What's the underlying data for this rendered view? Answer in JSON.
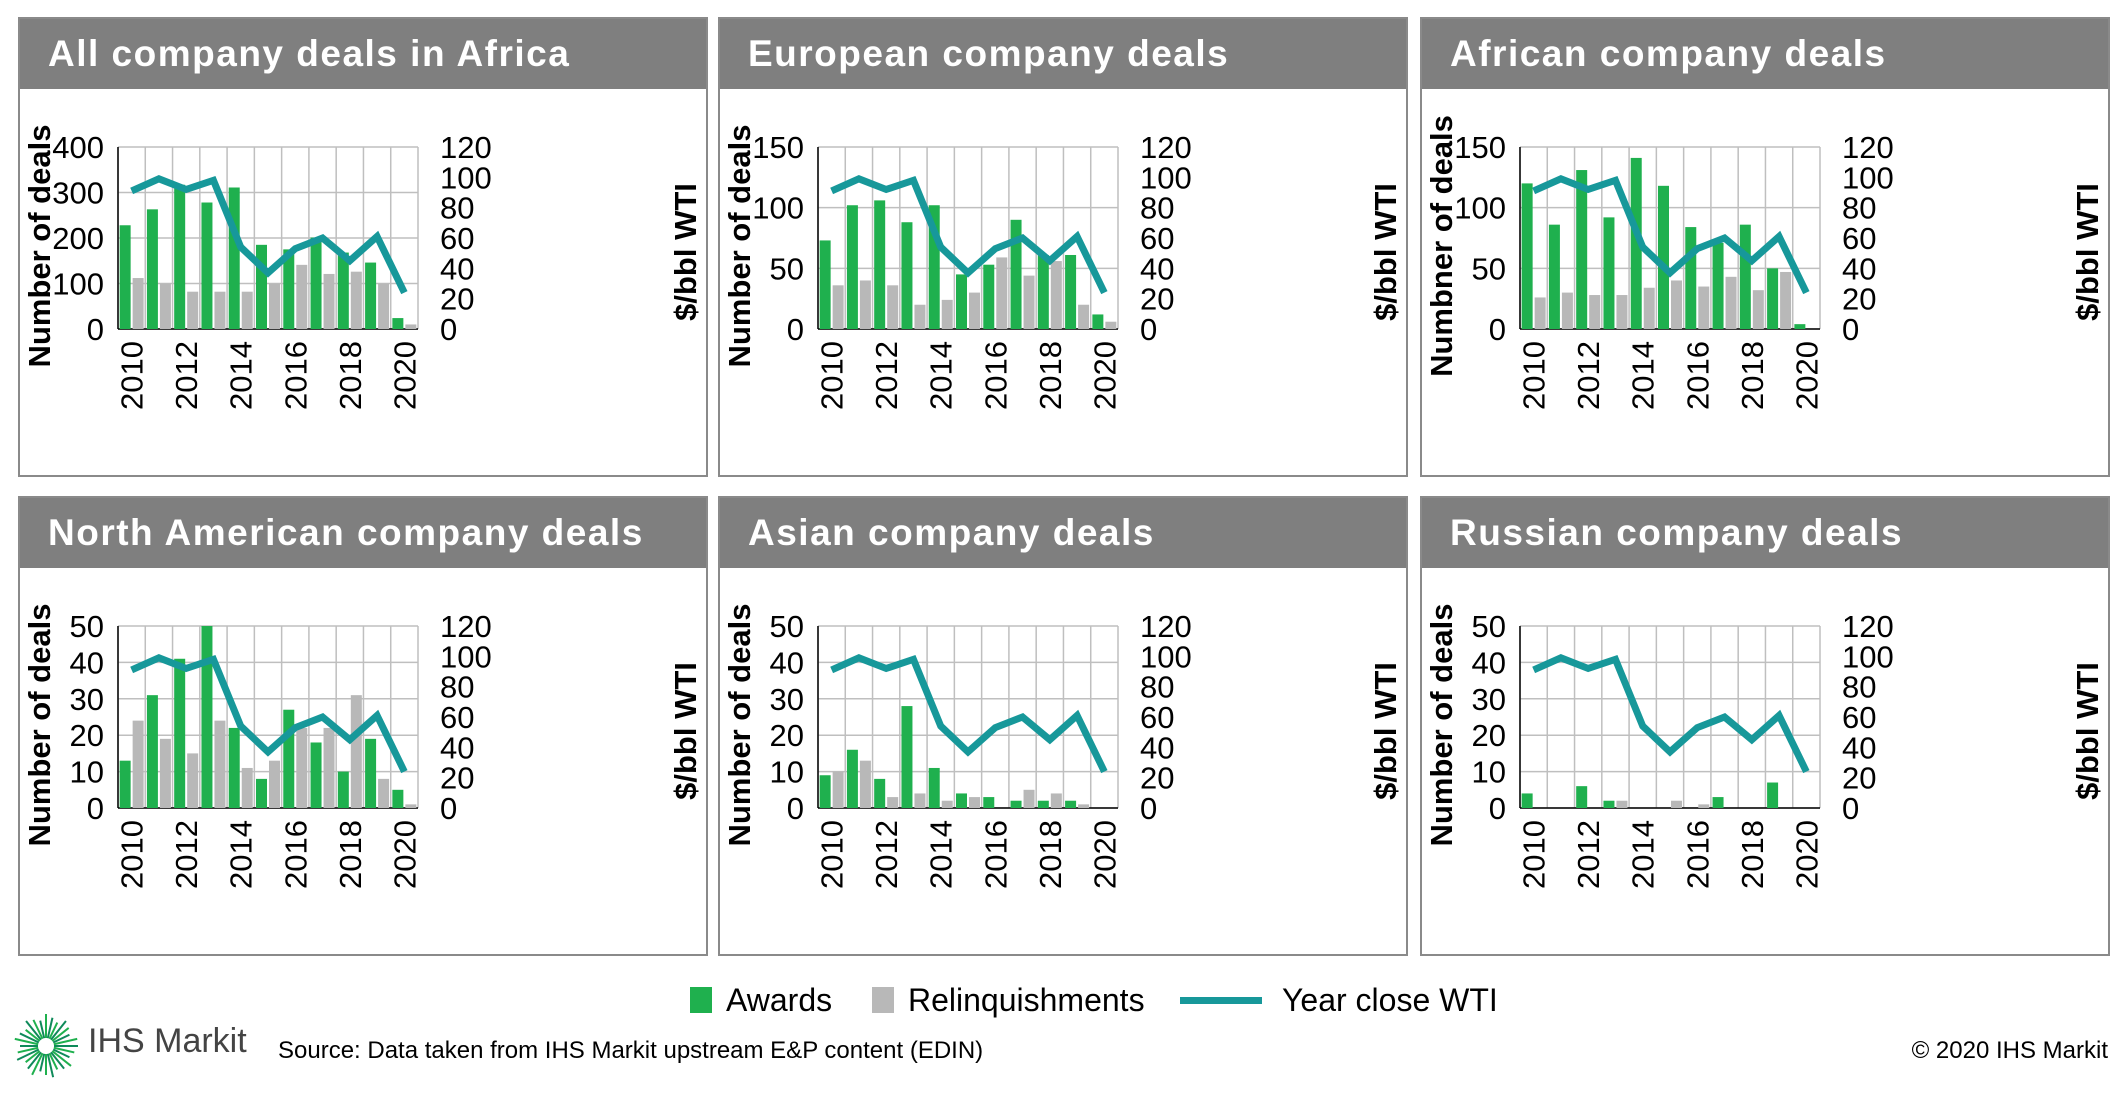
{
  "colors": {
    "awards": "#1fb04e",
    "relinquishments": "#b8b8b8",
    "wti": "#17989a",
    "header": "#7f7f7f",
    "grid": "#bfbfbf"
  },
  "chart_data": [
    {
      "type": "bar",
      "title": "All company deals in Africa",
      "ylabel": "Number of deals",
      "y2label": "$/bbl WTI",
      "ylim": [
        0,
        400
      ],
      "yticks": [
        "400",
        "300",
        "200",
        "100",
        "0"
      ],
      "y2lim": [
        0,
        120
      ],
      "y2ticks": [
        "120",
        "100",
        "80",
        "60",
        "40",
        "20",
        "0"
      ],
      "categories": [
        "2010",
        "2011",
        "2012",
        "2013",
        "2014",
        "2015",
        "2016",
        "2017",
        "2018",
        "2019",
        "2020"
      ],
      "xtick_labels": [
        "2010",
        "2012",
        "2014",
        "2016",
        "2018",
        "2020"
      ],
      "series": [
        {
          "name": "Awards",
          "axis": "left",
          "values": [
            228,
            263,
            317,
            278,
            311,
            185,
            175,
            201,
            168,
            146,
            24
          ]
        },
        {
          "name": "Relinquishments",
          "axis": "left",
          "values": [
            112,
            100,
            82,
            82,
            82,
            100,
            141,
            121,
            126,
            100,
            10
          ]
        },
        {
          "name": "Year close WTI",
          "axis": "right",
          "type": "line",
          "values": [
            91,
            99,
            92,
            98,
            54,
            37,
            53,
            60,
            45,
            61,
            24
          ]
        }
      ]
    },
    {
      "type": "bar",
      "title": "European company deals",
      "ylabel": "Number of deals",
      "y2label": "$/bbl WTI",
      "ylim": [
        0,
        150
      ],
      "yticks": [
        "150",
        "100",
        "50",
        "0"
      ],
      "y2lim": [
        0,
        120
      ],
      "y2ticks": [
        "120",
        "100",
        "80",
        "60",
        "40",
        "20",
        "0"
      ],
      "categories": [
        "2010",
        "2011",
        "2012",
        "2013",
        "2014",
        "2015",
        "2016",
        "2017",
        "2018",
        "2019",
        "2020"
      ],
      "xtick_labels": [
        "2010",
        "2012",
        "2014",
        "2016",
        "2018",
        "2020"
      ],
      "series": [
        {
          "name": "Awards",
          "axis": "left",
          "values": [
            73,
            102,
            106,
            88,
            102,
            45,
            53,
            90,
            61,
            61,
            12
          ]
        },
        {
          "name": "Relinquishments",
          "axis": "left",
          "values": [
            36,
            40,
            36,
            20,
            24,
            30,
            59,
            44,
            56,
            20,
            6
          ]
        },
        {
          "name": "Year close WTI",
          "axis": "right",
          "type": "line",
          "values": [
            91,
            99,
            92,
            98,
            54,
            37,
            53,
            60,
            45,
            61,
            24
          ]
        }
      ]
    },
    {
      "type": "bar",
      "title": "African company deals",
      "ylabel": "Numbner of deals",
      "y2label": "$/bbl WTI",
      "ylim": [
        0,
        150
      ],
      "yticks": [
        "150",
        "100",
        "50",
        "0"
      ],
      "y2lim": [
        0,
        120
      ],
      "y2ticks": [
        "120",
        "100",
        "80",
        "60",
        "40",
        "20",
        "0"
      ],
      "categories": [
        "2010",
        "2011",
        "2012",
        "2013",
        "2014",
        "2015",
        "2016",
        "2017",
        "2018",
        "2019",
        "2020"
      ],
      "xtick_labels": [
        "2010",
        "2012",
        "2014",
        "2016",
        "2018",
        "2020"
      ],
      "series": [
        {
          "name": "Awards",
          "axis": "left",
          "values": [
            120,
            86,
            131,
            92,
            141,
            118,
            84,
            71,
            86,
            50,
            4
          ]
        },
        {
          "name": "Relinquishments",
          "axis": "left",
          "values": [
            26,
            30,
            28,
            28,
            34,
            40,
            35,
            43,
            32,
            47,
            0
          ]
        },
        {
          "name": "Year close WTI",
          "axis": "right",
          "type": "line",
          "values": [
            91,
            99,
            92,
            98,
            54,
            37,
            53,
            60,
            45,
            61,
            24
          ]
        }
      ]
    },
    {
      "type": "bar",
      "title": "North American company deals",
      "ylabel": "Number of deals",
      "y2label": "$/bbl WTI",
      "ylim": [
        0,
        50
      ],
      "yticks": [
        "50",
        "40",
        "30",
        "20",
        "10",
        "0"
      ],
      "y2lim": [
        0,
        120
      ],
      "y2ticks": [
        "120",
        "100",
        "80",
        "60",
        "40",
        "20",
        "0"
      ],
      "categories": [
        "2010",
        "2011",
        "2012",
        "2013",
        "2014",
        "2015",
        "2016",
        "2017",
        "2018",
        "2019",
        "2020"
      ],
      "xtick_labels": [
        "2010",
        "2012",
        "2014",
        "2016",
        "2018",
        "2020"
      ],
      "series": [
        {
          "name": "Awards",
          "axis": "left",
          "values": [
            13,
            31,
            41,
            50,
            22,
            8,
            27,
            18,
            10,
            19,
            5
          ]
        },
        {
          "name": "Relinquishments",
          "axis": "left",
          "values": [
            24,
            19,
            15,
            24,
            11,
            13,
            22,
            22,
            31,
            8,
            1
          ]
        },
        {
          "name": "Year close WTI",
          "axis": "right",
          "type": "line",
          "values": [
            91,
            99,
            92,
            98,
            54,
            37,
            53,
            60,
            45,
            61,
            24
          ]
        }
      ]
    },
    {
      "type": "bar",
      "title": "Asian company deals",
      "ylabel": "Number of deals",
      "y2label": "$/bbl WTI",
      "ylim": [
        0,
        50
      ],
      "yticks": [
        "50",
        "40",
        "30",
        "20",
        "10",
        "0"
      ],
      "y2lim": [
        0,
        120
      ],
      "y2ticks": [
        "120",
        "100",
        "80",
        "60",
        "40",
        "20",
        "0"
      ],
      "categories": [
        "2010",
        "2011",
        "2012",
        "2013",
        "2014",
        "2015",
        "2016",
        "2017",
        "2018",
        "2019",
        "2020"
      ],
      "xtick_labels": [
        "2010",
        "2012",
        "2014",
        "2016",
        "2018",
        "2020"
      ],
      "series": [
        {
          "name": "Awards",
          "axis": "left",
          "values": [
            9,
            16,
            8,
            28,
            11,
            4,
            3,
            2,
            2,
            2,
            0
          ]
        },
        {
          "name": "Relinquishments",
          "axis": "left",
          "values": [
            10,
            13,
            3,
            4,
            2,
            3,
            0,
            5,
            4,
            1,
            0
          ]
        },
        {
          "name": "Year close WTI",
          "axis": "right",
          "type": "line",
          "values": [
            91,
            99,
            92,
            98,
            54,
            37,
            53,
            60,
            45,
            61,
            24
          ]
        }
      ]
    },
    {
      "type": "bar",
      "title": "Russian company deals",
      "ylabel": "Number of deals",
      "y2label": "$/bbl WTI",
      "ylim": [
        0,
        50
      ],
      "yticks": [
        "50",
        "40",
        "30",
        "20",
        "10",
        "0"
      ],
      "y2lim": [
        0,
        120
      ],
      "y2ticks": [
        "120",
        "100",
        "80",
        "60",
        "40",
        "20",
        "0"
      ],
      "categories": [
        "2010",
        "2011",
        "2012",
        "2013",
        "2014",
        "2015",
        "2016",
        "2017",
        "2018",
        "2019",
        "2020"
      ],
      "xtick_labels": [
        "2010",
        "2012",
        "2014",
        "2016",
        "2018",
        "2020"
      ],
      "series": [
        {
          "name": "Awards",
          "axis": "left",
          "values": [
            4,
            0,
            6,
            2,
            0,
            0,
            0,
            3,
            0,
            7,
            0
          ]
        },
        {
          "name": "Relinquishments",
          "axis": "left",
          "values": [
            0,
            0,
            0,
            2,
            0,
            2,
            1,
            0,
            0,
            0,
            0
          ]
        },
        {
          "name": "Year close WTI",
          "axis": "right",
          "type": "line",
          "values": [
            91,
            99,
            92,
            98,
            54,
            37,
            53,
            60,
            45,
            61,
            24
          ]
        }
      ]
    }
  ],
  "legend": {
    "awards": "Awards",
    "relinquishments": "Relinquishments",
    "wti": "Year close WTI"
  },
  "footer": {
    "logo_text": "IHS Markit",
    "source": "Source: Data taken from IHS Markit upstream E&P content (EDIN)",
    "copyright": "© 2020 IHS Markit"
  }
}
